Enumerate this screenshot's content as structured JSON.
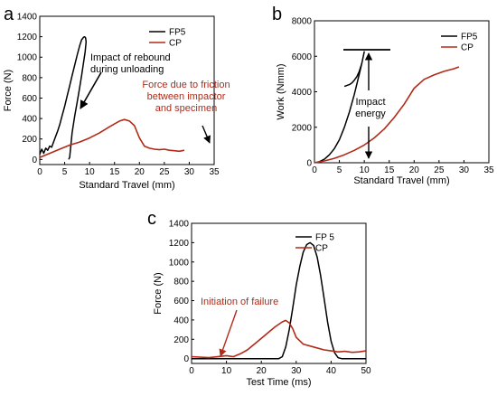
{
  "colors": {
    "fp5": "#000000",
    "cp": "#b22a17",
    "annot_dark": "#000000",
    "annot_red": "#b22a17"
  },
  "chart_data": [
    {
      "panel": "a",
      "type": "line",
      "xlabel": "Standard Travel (mm)",
      "ylabel": "Force (N)",
      "xlim": [
        0,
        35
      ],
      "ylim": [
        -50,
        1400
      ],
      "xticks": [
        "0",
        "5",
        "10",
        "15",
        "20",
        "25",
        "30",
        "35"
      ],
      "yticks": [
        "0",
        "200",
        "400",
        "600",
        "800",
        "1000",
        "1200",
        "1400"
      ],
      "legend": [
        "FP5",
        "CP"
      ],
      "series": [
        {
          "name": "FP5",
          "color": "#000000",
          "x": [
            0,
            0.4,
            0.8,
            1.2,
            1.6,
            2.0,
            2.4,
            3.0,
            3.6,
            4.0,
            4.5,
            5.0,
            5.5,
            6.0,
            6.5,
            7.0,
            7.5,
            8.0,
            8.4,
            8.8,
            9.0,
            9.2,
            9.3,
            9.1,
            8.8,
            8.4,
            8.0,
            7.5,
            7.0,
            6.5,
            6.2,
            6.0,
            5.8
          ],
          "y": [
            50,
            100,
            60,
            110,
            90,
            130,
            120,
            200,
            280,
            340,
            430,
            520,
            620,
            720,
            820,
            920,
            1020,
            1110,
            1170,
            1195,
            1200,
            1190,
            1150,
            1050,
            950,
            820,
            700,
            560,
            420,
            260,
            120,
            20,
            0
          ]
        },
        {
          "name": "CP",
          "color": "#b22a17",
          "x": [
            0,
            2,
            4,
            6,
            8,
            10,
            12,
            14,
            16,
            17,
            18,
            19,
            20,
            21,
            22,
            23,
            24,
            25,
            26,
            27,
            28,
            29
          ],
          "y": [
            20,
            60,
            100,
            140,
            170,
            210,
            260,
            320,
            375,
            390,
            375,
            330,
            210,
            130,
            110,
            100,
            95,
            100,
            90,
            85,
            80,
            90
          ]
        }
      ],
      "annotations": [
        {
          "text_lines": [
            "Impact of rebound",
            "during unloading"
          ],
          "color": "#000000"
        },
        {
          "text_lines": [
            "Force due to friction",
            "between impactor",
            "and specimen"
          ],
          "color": "#b22a17"
        }
      ]
    },
    {
      "panel": "b",
      "type": "line",
      "xlabel": "Standard Travel (mm)",
      "ylabel": "Work (Nmm)",
      "xlim": [
        0,
        35
      ],
      "ylim": [
        0,
        8000
      ],
      "xticks": [
        "0",
        "5",
        "10",
        "15",
        "20",
        "25",
        "30",
        "35"
      ],
      "yticks": [
        "0",
        "2000",
        "4000",
        "6000",
        "8000"
      ],
      "legend": [
        "FP5",
        "CP"
      ],
      "series": [
        {
          "name": "FP5",
          "color": "#000000",
          "x": [
            0,
            1,
            2,
            3,
            4,
            5,
            6,
            7,
            8,
            9,
            9.5,
            10,
            9.5,
            9,
            8.5,
            8,
            7.5,
            7,
            6.5,
            6
          ],
          "y": [
            0,
            60,
            200,
            450,
            800,
            1300,
            2000,
            2850,
            3850,
            5000,
            5600,
            6250,
            5600,
            5150,
            4850,
            4650,
            4500,
            4400,
            4350,
            4300
          ]
        },
        {
          "name": "CP",
          "color": "#b22a17",
          "x": [
            0,
            2,
            4,
            6,
            8,
            10,
            12,
            14,
            16,
            18,
            20,
            22,
            24,
            26,
            28,
            29
          ],
          "y": [
            0,
            100,
            250,
            450,
            700,
            1000,
            1400,
            1900,
            2550,
            3300,
            4200,
            4700,
            4950,
            5150,
            5300,
            5400
          ]
        }
      ],
      "annotations": [
        {
          "text_lines": [
            "Impact",
            "energy"
          ],
          "color": "#000000"
        }
      ]
    },
    {
      "panel": "c",
      "type": "line",
      "xlabel": "Test Time (ms)",
      "ylabel": "Force (N)",
      "xlim": [
        0,
        50
      ],
      "ylim": [
        -50,
        1400
      ],
      "xticks": [
        "0",
        "10",
        "20",
        "30",
        "40",
        "50"
      ],
      "yticks": [
        "0",
        "200",
        "400",
        "600",
        "800",
        "1000",
        "1200",
        "1400"
      ],
      "legend": [
        "FP 5",
        "CP"
      ],
      "series": [
        {
          "name": "FP 5",
          "color": "#000000",
          "x": [
            0,
            5,
            10,
            15,
            20,
            25,
            26,
            27,
            28,
            29,
            30,
            31,
            32,
            33,
            34,
            35,
            36,
            37,
            38,
            39,
            40,
            41,
            42,
            43,
            45,
            50
          ],
          "y": [
            0,
            0,
            0,
            0,
            0,
            0,
            20,
            120,
            300,
            520,
            760,
            950,
            1100,
            1180,
            1200,
            1170,
            1050,
            860,
            620,
            380,
            180,
            60,
            10,
            0,
            0,
            0
          ]
        },
        {
          "name": "CP",
          "color": "#b22a17",
          "x": [
            0,
            5,
            10,
            12,
            14,
            16,
            18,
            20,
            22,
            24,
            26,
            27,
            28,
            29,
            30,
            32,
            35,
            38,
            40,
            42,
            44,
            46,
            48,
            50
          ],
          "y": [
            20,
            10,
            30,
            20,
            50,
            90,
            150,
            210,
            270,
            330,
            380,
            395,
            370,
            310,
            220,
            150,
            120,
            90,
            80,
            70,
            75,
            65,
            70,
            80
          ]
        }
      ],
      "annotations": [
        {
          "text_lines": [
            "Initiation of failure"
          ],
          "color": "#b22a17"
        }
      ]
    }
  ]
}
